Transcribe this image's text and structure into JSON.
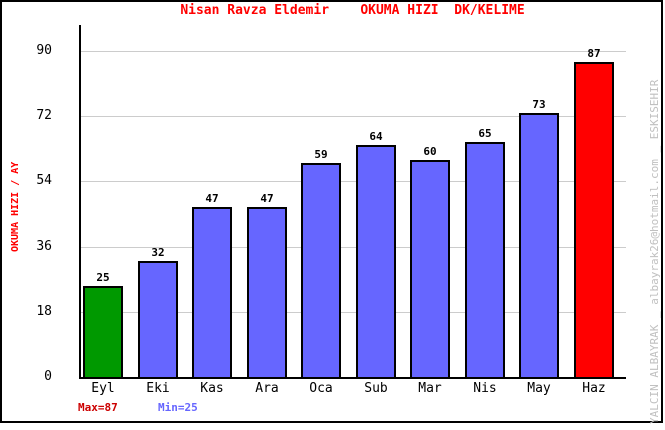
{
  "title": "Nisan Ravza Eldemir    OKUMA HIZI  DK/KELIME",
  "y_axis_title": "OKUMA HIZI / AY",
  "watermark": "YALCIN ALBAYRAK _ albayrak26@hotmail.com _ ESKISEHIR",
  "footer": {
    "max_label": "Max=87",
    "min_label": "Min=25"
  },
  "chart_data": {
    "type": "bar",
    "title": "Nisan Ravza Eldemir    OKUMA HIZI  DK/KELIME",
    "categories": [
      "Eyl",
      "Eki",
      "Kas",
      "Ara",
      "Oca",
      "Sub",
      "Mar",
      "Nis",
      "May",
      "Haz"
    ],
    "values": [
      25,
      32,
      47,
      47,
      59,
      64,
      60,
      65,
      73,
      87
    ],
    "bar_colors": [
      "#009900",
      "#6666ff",
      "#6666ff",
      "#6666ff",
      "#6666ff",
      "#6666ff",
      "#6666ff",
      "#6666ff",
      "#6666ff",
      "#ff0000"
    ],
    "xlabel": "",
    "ylabel": "OKUMA HIZI / AY",
    "ylim": [
      0,
      97
    ],
    "yticks": [
      0,
      18,
      36,
      54,
      72,
      90
    ],
    "grid": true,
    "legend": false,
    "max": 87,
    "min": 25
  },
  "colors": {
    "title": "#ff0000",
    "bar_default": "#6666ff",
    "bar_min": "#009900",
    "bar_max": "#ff0000",
    "gridline": "#cccccc",
    "axis": "#000000",
    "max_label": "#cc0000",
    "min_label": "#6666ff",
    "watermark": "#c0c0c0"
  }
}
